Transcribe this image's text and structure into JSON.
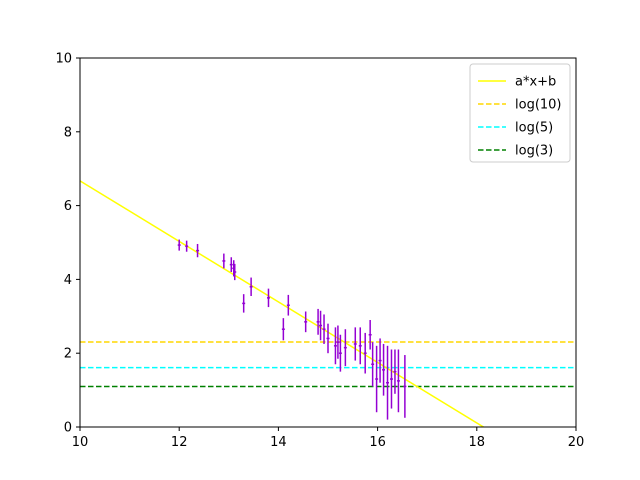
{
  "chart_data": {
    "type": "scatter",
    "xlim": [
      10,
      20
    ],
    "ylim": [
      0,
      10
    ],
    "xticks": [
      "10",
      "12",
      "14",
      "16",
      "18",
      "20"
    ],
    "yticks": [
      "0",
      "2",
      "4",
      "6",
      "8",
      "10"
    ],
    "grid": false,
    "legend_position": "top-right",
    "fit_line": {
      "name": "a*x+b",
      "color": "#ffff00",
      "slope": -0.82,
      "intercept": 14.87,
      "style": "solid"
    },
    "hlines": [
      {
        "name": "log(10)",
        "y": 2.303,
        "color": "#ffd700",
        "style": "dashed"
      },
      {
        "name": "log(5)",
        "y": 1.609,
        "color": "#00ffff",
        "style": "dashed"
      },
      {
        "name": "log(3)",
        "y": 1.099,
        "color": "#008000",
        "style": "dashed"
      }
    ],
    "points_color": "#9400d3",
    "points": [
      {
        "x": 12.0,
        "y": 4.93,
        "xerr": 0.03,
        "yerr": 0.15
      },
      {
        "x": 12.15,
        "y": 4.9,
        "xerr": 0.03,
        "yerr": 0.15
      },
      {
        "x": 12.37,
        "y": 4.78,
        "xerr": 0.03,
        "yerr": 0.18
      },
      {
        "x": 12.9,
        "y": 4.5,
        "xerr": 0.03,
        "yerr": 0.2
      },
      {
        "x": 13.05,
        "y": 4.4,
        "xerr": 0.03,
        "yerr": 0.2
      },
      {
        "x": 13.1,
        "y": 4.3,
        "xerr": 0.03,
        "yerr": 0.22
      },
      {
        "x": 13.12,
        "y": 4.2,
        "xerr": 0.03,
        "yerr": 0.22
      },
      {
        "x": 13.3,
        "y": 3.35,
        "xerr": 0.03,
        "yerr": 0.25
      },
      {
        "x": 13.45,
        "y": 3.8,
        "xerr": 0.03,
        "yerr": 0.25
      },
      {
        "x": 13.8,
        "y": 3.5,
        "xerr": 0.03,
        "yerr": 0.25
      },
      {
        "x": 14.1,
        "y": 2.65,
        "xerr": 0.03,
        "yerr": 0.3
      },
      {
        "x": 14.2,
        "y": 3.3,
        "xerr": 0.03,
        "yerr": 0.28
      },
      {
        "x": 14.55,
        "y": 2.85,
        "xerr": 0.03,
        "yerr": 0.28
      },
      {
        "x": 14.8,
        "y": 2.85,
        "xerr": 0.03,
        "yerr": 0.35
      },
      {
        "x": 14.85,
        "y": 2.75,
        "xerr": 0.03,
        "yerr": 0.4
      },
      {
        "x": 14.92,
        "y": 2.65,
        "xerr": 0.03,
        "yerr": 0.4
      },
      {
        "x": 15.0,
        "y": 2.4,
        "xerr": 0.03,
        "yerr": 0.4
      },
      {
        "x": 15.15,
        "y": 2.2,
        "xerr": 0.03,
        "yerr": 0.5
      },
      {
        "x": 15.2,
        "y": 2.3,
        "xerr": 0.03,
        "yerr": 0.45
      },
      {
        "x": 15.25,
        "y": 2.0,
        "xerr": 0.03,
        "yerr": 0.5
      },
      {
        "x": 15.35,
        "y": 2.15,
        "xerr": 0.03,
        "yerr": 0.5
      },
      {
        "x": 15.55,
        "y": 2.25,
        "xerr": 0.03,
        "yerr": 0.45
      },
      {
        "x": 15.65,
        "y": 2.2,
        "xerr": 0.03,
        "yerr": 0.5
      },
      {
        "x": 15.75,
        "y": 2.0,
        "xerr": 0.03,
        "yerr": 0.55
      },
      {
        "x": 15.85,
        "y": 2.5,
        "xerr": 0.03,
        "yerr": 0.4
      },
      {
        "x": 15.9,
        "y": 1.7,
        "xerr": 0.03,
        "yerr": 0.6
      },
      {
        "x": 15.98,
        "y": 1.3,
        "xerr": 0.03,
        "yerr": 0.9
      },
      {
        "x": 16.05,
        "y": 1.8,
        "xerr": 0.03,
        "yerr": 0.6
      },
      {
        "x": 16.12,
        "y": 1.55,
        "xerr": 0.03,
        "yerr": 0.7
      },
      {
        "x": 16.2,
        "y": 1.2,
        "xerr": 0.03,
        "yerr": 1.0
      },
      {
        "x": 16.28,
        "y": 1.3,
        "xerr": 0.03,
        "yerr": 0.8
      },
      {
        "x": 16.35,
        "y": 1.5,
        "xerr": 0.03,
        "yerr": 0.6
      },
      {
        "x": 16.42,
        "y": 1.25,
        "xerr": 0.03,
        "yerr": 0.85
      },
      {
        "x": 16.55,
        "y": 1.1,
        "xerr": 0.03,
        "yerr": 0.85
      }
    ]
  }
}
